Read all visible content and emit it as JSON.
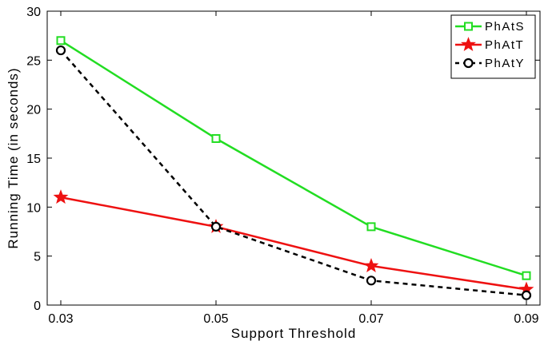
{
  "chart_data": {
    "type": "line",
    "title": "",
    "xlabel": "Support Threshold",
    "ylabel": "Running Time (in seconds)",
    "x": [
      0.03,
      0.05,
      0.07,
      0.09
    ],
    "x_tick_labels": [
      "0.03",
      "0.05",
      "0.07",
      "0.09"
    ],
    "xlim": [
      0.03,
      0.09
    ],
    "ylim": [
      0,
      30
    ],
    "y_ticks": [
      0,
      5,
      10,
      15,
      20,
      25,
      30
    ],
    "grid": false,
    "legend_position": "top-right",
    "series": [
      {
        "name": "PhAtS",
        "values": [
          27,
          17,
          8,
          3
        ],
        "color": "#22dd22",
        "marker": "square",
        "line_style": "solid"
      },
      {
        "name": "PhAtT",
        "values": [
          11,
          8,
          4,
          1.6
        ],
        "color": "#ee1111",
        "marker": "star",
        "line_style": "solid"
      },
      {
        "name": "PhAtY",
        "values": [
          26,
          8,
          2.5,
          1
        ],
        "color": "#000000",
        "marker": "circle",
        "line_style": "dashed"
      }
    ]
  }
}
